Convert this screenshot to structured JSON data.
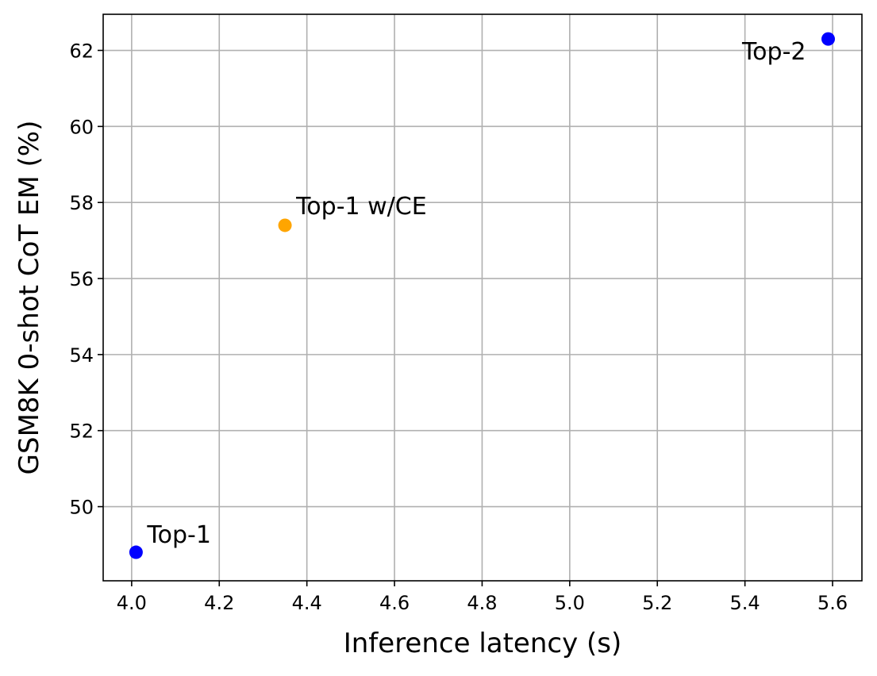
{
  "chart_data": {
    "type": "scatter",
    "title": "",
    "xlabel": "Inference latency (s)",
    "ylabel": "GSM8K 0-shot CoT EM (%)",
    "xlim": [
      3.935,
      5.667
    ],
    "ylim": [
      48.05,
      62.95
    ],
    "xticks": [
      "4.0",
      "4.2",
      "4.4",
      "4.6",
      "4.8",
      "5.0",
      "5.2",
      "5.4",
      "5.6"
    ],
    "yticks": [
      "50",
      "52",
      "54",
      "56",
      "58",
      "60",
      "62"
    ],
    "grid": true,
    "points": [
      {
        "label": "Top-1",
        "x": 4.01,
        "y": 48.8,
        "color": "#0000ff"
      },
      {
        "label": "Top-1 w/CE",
        "x": 4.35,
        "y": 57.4,
        "color": "#ffa500"
      },
      {
        "label": "Top-2",
        "x": 5.59,
        "y": 62.3,
        "color": "#0000ff"
      }
    ]
  }
}
